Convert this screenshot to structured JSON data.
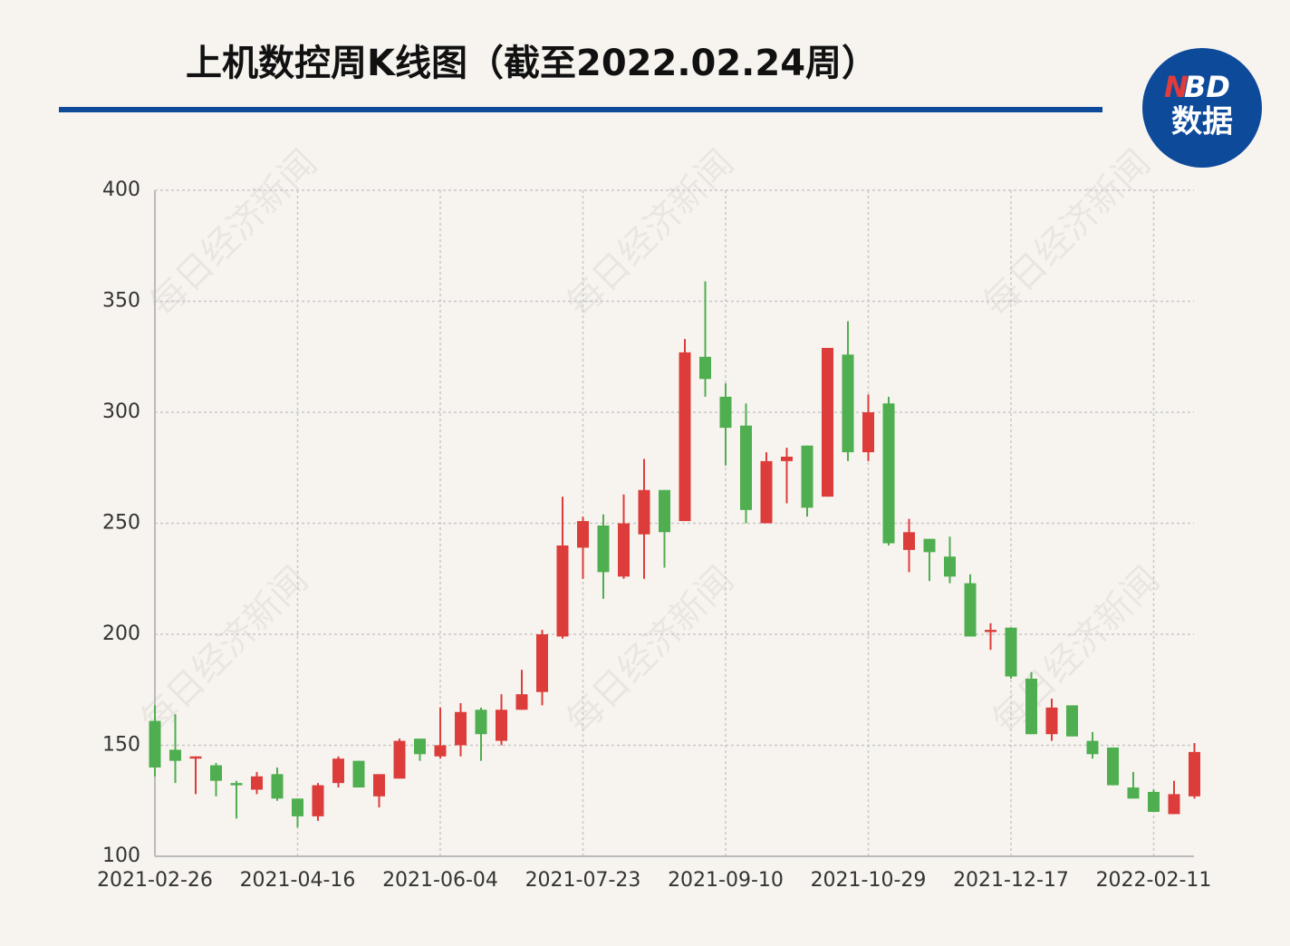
{
  "chart_data": {
    "type": "candlestick",
    "title": "上机数控周K线图（截至2022.02.24周）",
    "logo": {
      "accent": "N",
      "rest": "BD",
      "sub": "数据"
    },
    "watermark": "每日经济新闻",
    "categories": [
      "2021-02-26",
      null,
      null,
      null,
      null,
      null,
      null,
      "2021-04-16",
      null,
      null,
      null,
      null,
      null,
      null,
      "2021-06-04",
      null,
      null,
      null,
      null,
      null,
      null,
      "2021-07-23",
      null,
      null,
      null,
      null,
      null,
      null,
      "2021-09-10",
      null,
      null,
      null,
      null,
      null,
      null,
      "2021-10-29",
      null,
      null,
      null,
      null,
      null,
      null,
      "2021-12-17",
      null,
      null,
      null,
      null,
      null,
      null,
      "2022-02-11",
      null,
      null
    ],
    "series": {
      "up_color": "#dc3d3a",
      "down_color": "#4fae4f",
      "open": [
        161,
        148,
        144,
        141,
        133,
        130,
        137,
        126,
        118,
        133,
        143,
        127,
        135,
        153,
        145,
        150,
        166,
        152,
        166,
        174,
        199,
        239,
        249,
        226,
        245,
        265,
        251,
        325,
        307,
        294,
        250,
        278,
        285,
        262,
        326,
        282,
        304,
        238,
        243,
        235,
        223,
        201,
        203,
        180,
        155,
        168,
        152,
        149,
        131,
        129,
        119,
        127
      ],
      "high": [
        168,
        164,
        145,
        142,
        134,
        138,
        140,
        126,
        133,
        145,
        143,
        137,
        153,
        153,
        167,
        169,
        167,
        173,
        184,
        202,
        262,
        253,
        254,
        263,
        279,
        265,
        333,
        359,
        313,
        304,
        282,
        284,
        285,
        329,
        341,
        308,
        307,
        252,
        243,
        244,
        227,
        205,
        203,
        183,
        171,
        168,
        156,
        149,
        138,
        130,
        134,
        151
      ],
      "low": [
        136,
        133,
        128,
        127,
        117,
        128,
        125,
        113,
        116,
        131,
        131,
        122,
        135,
        143,
        144,
        145,
        143,
        150,
        166,
        168,
        198,
        225,
        216,
        225,
        225,
        230,
        251,
        307,
        276,
        250,
        250,
        259,
        253,
        262,
        278,
        278,
        240,
        228,
        224,
        223,
        199,
        193,
        180,
        155,
        152,
        154,
        144,
        132,
        126,
        120,
        119,
        126
      ],
      "close": [
        140,
        143,
        145,
        134,
        132,
        136,
        126,
        118,
        132,
        144,
        131,
        137,
        152,
        146,
        150,
        165,
        155,
        166,
        173,
        200,
        240,
        251,
        228,
        250,
        265,
        246,
        327,
        315,
        293,
        256,
        278,
        280,
        257,
        329,
        282,
        300,
        241,
        246,
        237,
        226,
        199,
        202,
        181,
        155,
        167,
        154,
        146,
        132,
        126,
        120,
        128,
        147
      ]
    },
    "ylim": [
      100,
      400
    ],
    "yticks": [
      100,
      150,
      200,
      250,
      300,
      350,
      400
    ],
    "grid": true
  }
}
